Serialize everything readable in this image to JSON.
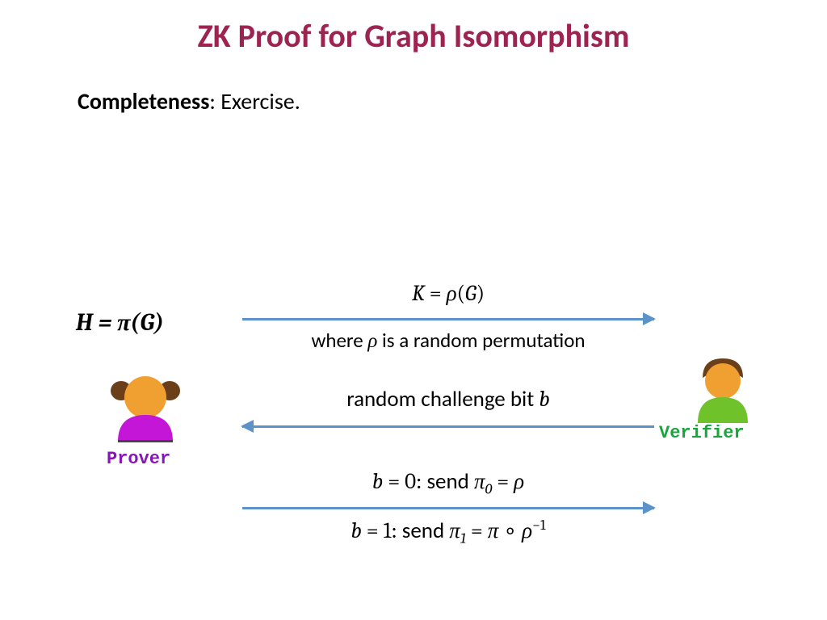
{
  "title": {
    "text": "ZK Proof for Graph Isomorphism",
    "color": "#9d2450"
  },
  "subtitle": {
    "bold": "Completeness",
    "rest": ": Exercise."
  },
  "prover": {
    "equation_html": "H = <span class='it'>π</span>(<span class='it'>G</span>)",
    "label": "Prover",
    "label_color": "#8816b5",
    "body_color": "#c316d6",
    "skin_color": "#f0a030",
    "hair_color": "#6b3f1a"
  },
  "verifier": {
    "label": "Verifier",
    "label_color": "#17a63b",
    "body_color": "#6fc22a",
    "skin_color": "#f0a030",
    "hair_color": "#6b3f1a"
  },
  "arrows": {
    "color": "#5b93c9",
    "thickness": 3
  },
  "messages": {
    "m1_top": "<span class='it'>K</span> = <span class='it'>ρ</span>(<span class='it'>G</span>)",
    "m1_bottom": "<span class='plain'>where </span><span class='it'>ρ</span><span class='plain'> is a random permutation</span>",
    "m2": "<span class='plain'>random challenge bit </span><span class='it'>b</span>",
    "m3_top": "<span class='it'>b</span> = 0<span class='plain'>: send </span><span class='it'>π</span><span class='sub'>0</span> = <span class='it'>ρ</span>",
    "m3_bottom": "<span class='it'>b</span> = 1<span class='plain'>: send </span><span class='it'>π</span><span class='sub'>1</span> = <span class='it'>π</span> ∘ <span class='it'>ρ</span><span class='sup'>−1</span>"
  }
}
